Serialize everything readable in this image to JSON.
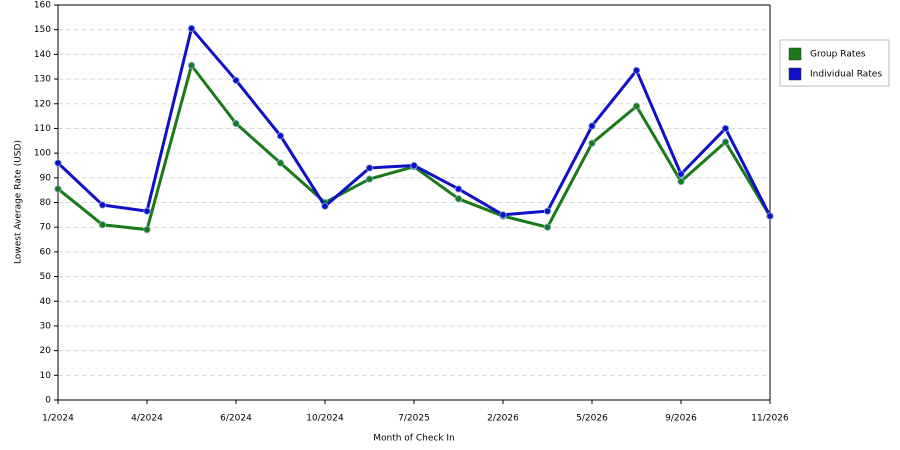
{
  "chart_data": {
    "type": "line",
    "x_label": "Month of Check In",
    "y_label": "Lowest Average Rate (USD)",
    "categories": [
      "1/2024",
      null,
      "4/2024",
      null,
      "6/2024",
      null,
      "10/2024",
      null,
      "7/2025",
      null,
      "2/2026",
      null,
      "5/2026",
      null,
      "9/2026",
      null,
      "11/2026"
    ],
    "series": [
      {
        "name": "Group Rates",
        "color": "#1a7a1a",
        "values": [
          85.5,
          71,
          69,
          135.5,
          112,
          96,
          80,
          89.5,
          94.5,
          81.5,
          74.5,
          70,
          104,
          119,
          88.5,
          104.5,
          74.5
        ]
      },
      {
        "name": "Individual Rates",
        "color": "#1010c8",
        "values": [
          96,
          79,
          76.5,
          150.5,
          129.5,
          107,
          78.5,
          94,
          95,
          85.5,
          75,
          76.5,
          111,
          133.5,
          91.5,
          110,
          74.5
        ]
      }
    ],
    "ylim": [
      0,
      160
    ],
    "yticks": [
      0,
      10,
      20,
      30,
      40,
      50,
      60,
      70,
      80,
      90,
      100,
      110,
      120,
      130,
      140,
      150,
      160
    ],
    "grid": true,
    "legend": "right"
  }
}
